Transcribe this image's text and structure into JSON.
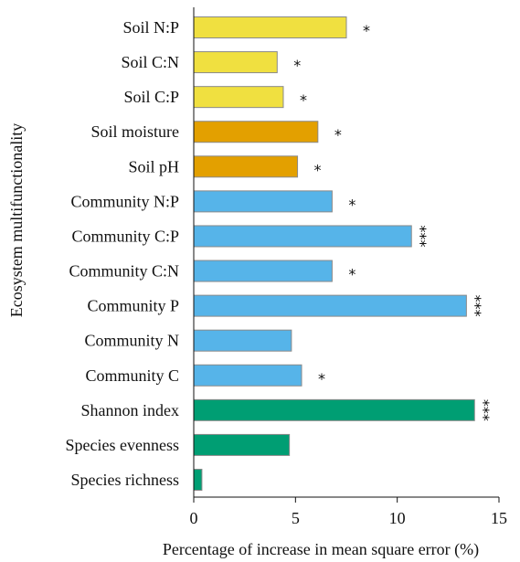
{
  "chart_data": {
    "type": "bar",
    "orientation": "horizontal",
    "xlabel": "Percentage of increase in mean square error (%)",
    "ylabel": "Ecosystem multifunctionality",
    "xlim": [
      0,
      15
    ],
    "xticks": [
      "0",
      "5",
      "10",
      "15"
    ],
    "grid": false,
    "categories": [
      "Soil N:P",
      "Soil C:N",
      "Soil C:P",
      "Soil moisture",
      "Soil pH",
      "Community N:P",
      "Community C:P",
      "Community C:N",
      "Community P",
      "Community N",
      "Community C",
      "Shannon index",
      "Species evenness",
      "Species richness"
    ],
    "values": [
      7.5,
      4.1,
      4.4,
      6.1,
      5.1,
      6.8,
      10.7,
      6.8,
      13.4,
      4.8,
      5.3,
      13.8,
      4.7,
      0.4
    ],
    "significance": [
      "*",
      "*",
      "*",
      "*",
      "*",
      "*",
      "***",
      "*",
      "***",
      "",
      "*",
      "***",
      "",
      ""
    ],
    "colors": [
      "#f0e040",
      "#f0e040",
      "#f0e040",
      "#e3a000",
      "#e3a000",
      "#56b4e9",
      "#56b4e9",
      "#56b4e9",
      "#56b4e9",
      "#56b4e9",
      "#56b4e9",
      "#009e73",
      "#009e73",
      "#009e73"
    ]
  }
}
